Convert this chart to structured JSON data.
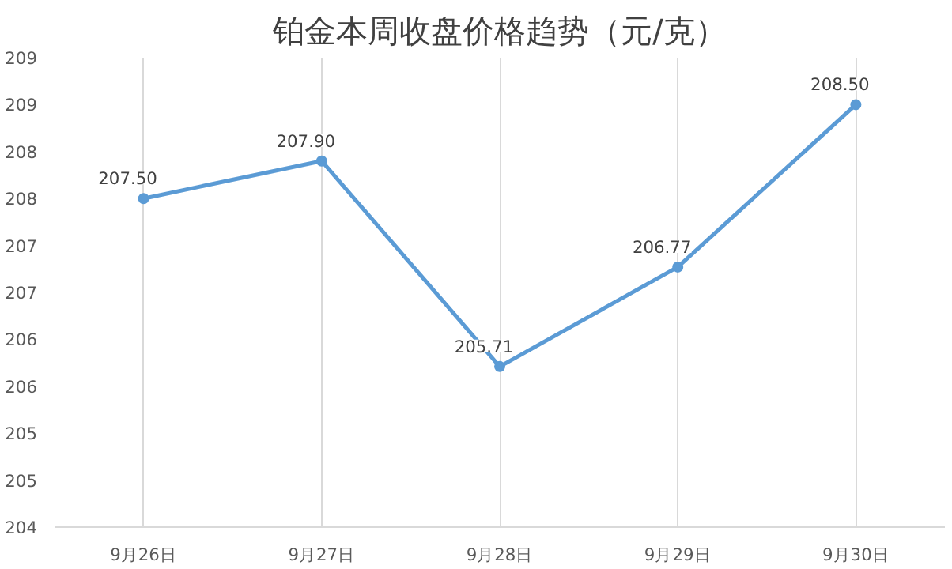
{
  "chart_data": {
    "type": "line",
    "title": "铂金本周收盘价格趋势（元/克）",
    "categories": [
      "9月26日",
      "9月27日",
      "9月28日",
      "9月29日",
      "9月30日"
    ],
    "values": [
      207.5,
      207.9,
      205.71,
      206.77,
      208.5
    ],
    "value_labels": [
      "207.50",
      "207.90",
      "205.71",
      "206.77",
      "208.50"
    ],
    "color": "#5b9bd5",
    "marker": "circle",
    "grid": "x",
    "ylim": [
      204,
      209
    ],
    "yticks": [
      {
        "value": 204,
        "label": "204"
      },
      {
        "value": 204.5,
        "label": "205"
      },
      {
        "value": 205,
        "label": "205"
      },
      {
        "value": 205.5,
        "label": "206"
      },
      {
        "value": 206,
        "label": "206"
      },
      {
        "value": 206.5,
        "label": "207"
      },
      {
        "value": 207,
        "label": "207"
      },
      {
        "value": 207.5,
        "label": "208"
      },
      {
        "value": 208,
        "label": "208"
      },
      {
        "value": 208.5,
        "label": "209"
      },
      {
        "value": 209,
        "label": "209"
      }
    ]
  }
}
